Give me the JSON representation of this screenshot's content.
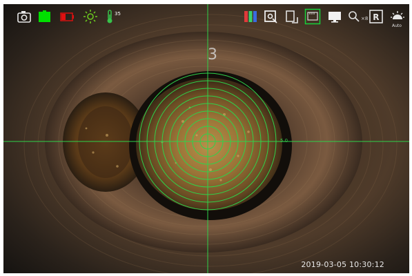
{
  "overlay": {
    "timestamp": "2019-03-05 10:30:12",
    "temperature": "35",
    "zoom": "×8",
    "mode": "Auto",
    "ring_label": "5.0"
  },
  "icons": [
    {
      "name": "camera-icon"
    },
    {
      "name": "battery-full-icon",
      "color": "#00e000"
    },
    {
      "name": "battery-low-icon",
      "color": "#e01010"
    },
    {
      "name": "brightness-icon",
      "color": "#6ac61f"
    },
    {
      "name": "thermometer-icon",
      "color": "#37c24a"
    },
    {
      "name": "color-palette-icon"
    },
    {
      "name": "snapshot-icon"
    },
    {
      "name": "rotate-icon"
    },
    {
      "name": "grid-measure-icon",
      "color": "#16d13a"
    },
    {
      "name": "monitor-icon"
    },
    {
      "name": "zoom-icon"
    },
    {
      "name": "record-icon"
    },
    {
      "name": "auto-light-icon"
    }
  ],
  "colors": {
    "reticle": "#2fd34a",
    "pipe_dark": "#1b1611",
    "pipe_rust": "#6b4a2a"
  }
}
